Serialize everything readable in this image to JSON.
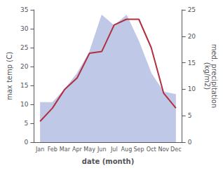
{
  "chart_data": {
    "type": "line",
    "xlabel": "date (month)",
    "ylabel": "max temp (C)",
    "y2label": "med. precipitation\n(kg/m2)",
    "categories": [
      "Jan",
      "Feb",
      "Mar",
      "Apr",
      "May",
      "Jun",
      "Jul",
      "Aug",
      "Sep",
      "Oct",
      "Nov",
      "Dec"
    ],
    "series": [
      {
        "type": "area",
        "axis": "y2",
        "color": "#c0c8e8",
        "values": [
          7.5,
          7.5,
          10.0,
          13.0,
          17.0,
          24.0,
          22.0,
          24.0,
          19.0,
          13.0,
          9.5,
          9.0
        ]
      },
      {
        "type": "line",
        "color": "#b03040",
        "values": [
          5.5,
          9.0,
          14.0,
          17.0,
          23.5,
          24.0,
          31.0,
          32.5,
          32.5,
          25.0,
          13.0,
          9.0
        ]
      }
    ],
    "ylim": [
      0,
      35
    ],
    "yticks": [
      0,
      5,
      10,
      15,
      20,
      25,
      30,
      35
    ],
    "y2lim": [
      0,
      25
    ],
    "y2ticks": [
      0,
      5,
      10,
      15,
      20,
      25
    ],
    "grid": false
  }
}
